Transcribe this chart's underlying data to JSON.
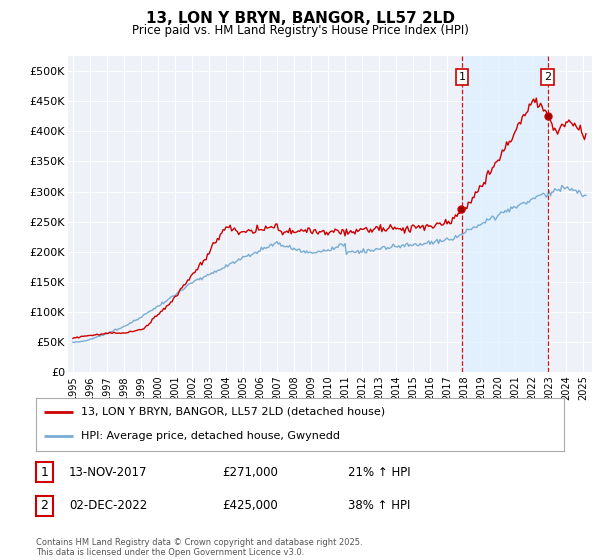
{
  "title": "13, LON Y BRYN, BANGOR, LL57 2LD",
  "subtitle": "Price paid vs. HM Land Registry's House Price Index (HPI)",
  "ylim": [
    0,
    525000
  ],
  "yticks": [
    0,
    50000,
    100000,
    150000,
    200000,
    250000,
    300000,
    350000,
    400000,
    450000,
    500000
  ],
  "ytick_labels": [
    "£0",
    "£50K",
    "£100K",
    "£150K",
    "£200K",
    "£250K",
    "£300K",
    "£350K",
    "£400K",
    "£450K",
    "£500K"
  ],
  "sale1_date": "13-NOV-2017",
  "sale1_year": 2017.875,
  "sale1_price": 271000,
  "sale1_pct": "21%",
  "sale2_date": "02-DEC-2022",
  "sale2_year": 2022.917,
  "sale2_price": 425000,
  "sale2_pct": "38%",
  "legend1": "13, LON Y BRYN, BANGOR, LL57 2LD (detached house)",
  "legend2": "HPI: Average price, detached house, Gwynedd",
  "footer": "Contains HM Land Registry data © Crown copyright and database right 2025.\nThis data is licensed under the Open Government Licence v3.0.",
  "red_color": "#cc0000",
  "blue_color": "#7aadd4",
  "vline_color": "#cc0000",
  "shade_color": "#ddeeff",
  "bg_color": "#ffffff",
  "plot_bg_color": "#eef2f8",
  "grid_color": "#ffffff",
  "xlim_left": 1994.7,
  "xlim_right": 2025.5
}
